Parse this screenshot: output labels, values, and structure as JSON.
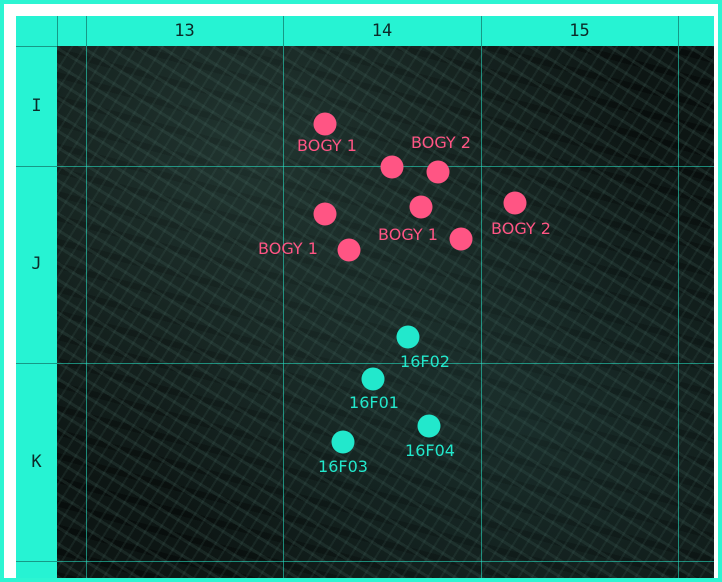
{
  "grid": {
    "columns": [
      "13",
      "14",
      "15"
    ],
    "rows": [
      "I",
      "J",
      "K"
    ]
  },
  "colors": {
    "hostile": "#ff5584",
    "friendly": "#22e8cc",
    "header": "#26f3d3",
    "frame": "#2cf5d2"
  },
  "hostile_markers": [
    "BOGY 1",
    "BOGY 2",
    "BOGY 1",
    "BOGY 1",
    "BOGY 2"
  ],
  "friendly_markers": [
    "16F02",
    "16F01",
    "16F04",
    "16F03"
  ]
}
